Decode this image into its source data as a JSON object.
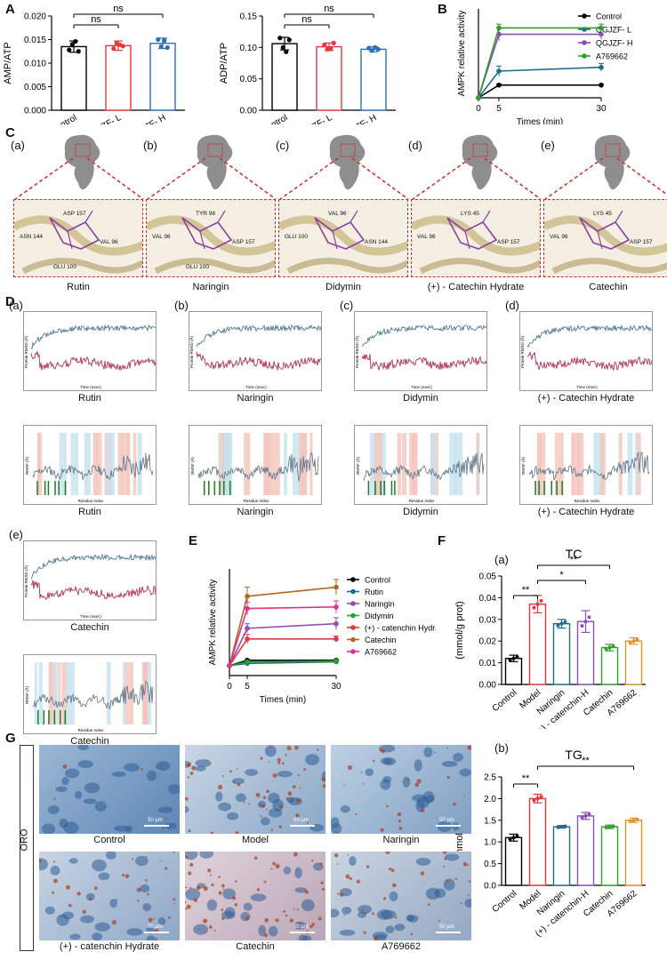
{
  "panel_labels": {
    "A": "A",
    "B": "B",
    "C": "C",
    "D": "D",
    "E": "E",
    "F": "F",
    "G": "G"
  },
  "colors": {
    "control": "#000000",
    "qgjzf_l": "#e0393e",
    "qgjzf_h": "#2f6fb5",
    "green": "#2ca02c",
    "dash": "#d12a2a"
  },
  "chart_data": [
    {
      "id": "A1",
      "type": "bar",
      "categories": [
        "Control",
        "QGJZF- L",
        "QGJZF- H"
      ],
      "values": [
        0.0135,
        0.0137,
        0.0142
      ],
      "errors": [
        0.0012,
        0.001,
        0.0011
      ],
      "points": [
        [
          0.0128,
          0.014,
          0.0146,
          0.0125
        ],
        [
          0.0131,
          0.0142,
          0.0139,
          0.0136
        ],
        [
          0.015,
          0.0135,
          0.0148,
          0.0133
        ]
      ],
      "colors": [
        "#000000",
        "#e0393e",
        "#2f6fb5"
      ],
      "ylabel": "AMP/ATP",
      "ylim": [
        0,
        0.02
      ],
      "yticks": [
        "0.000",
        "0.005",
        "0.010",
        "0.015",
        "0.020"
      ],
      "annotations": [
        {
          "from": 0,
          "to": 1,
          "text": "ns"
        },
        {
          "from": 0,
          "to": 2,
          "text": "ns"
        }
      ]
    },
    {
      "id": "A2",
      "type": "bar",
      "categories": [
        "Control",
        "QGJZF- L",
        "QGJZF- H"
      ],
      "values": [
        0.106,
        0.101,
        0.097
      ],
      "errors": [
        0.01,
        0.006,
        0.004
      ],
      "points": [
        [
          0.115,
          0.1,
          0.093,
          0.112
        ],
        [
          0.104,
          0.097,
          0.098,
          0.107
        ],
        [
          0.099,
          0.095,
          0.1,
          0.097
        ]
      ],
      "colors": [
        "#000000",
        "#e0393e",
        "#2f6fb5"
      ],
      "ylabel": "ADP/ATP",
      "ylim": [
        0,
        0.15
      ],
      "yticks": [
        "0.00",
        "0.05",
        "0.10",
        "0.15"
      ],
      "annotations": [
        {
          "from": 0,
          "to": 1,
          "text": "ns"
        },
        {
          "from": 0,
          "to": 2,
          "text": "ns"
        }
      ]
    },
    {
      "id": "B",
      "type": "line",
      "x": [
        0,
        5,
        30
      ],
      "series": [
        {
          "name": "Control",
          "values": [
            0,
            1.0,
            1.0
          ],
          "errors": [
            0,
            0.05,
            0.05
          ],
          "color": "#000000"
        },
        {
          "name": "QGJZF- L",
          "values": [
            0,
            2.1,
            2.4
          ],
          "errors": [
            0,
            0.4,
            0.3
          ],
          "color": "#1f6c8c"
        },
        {
          "name": "QGJZF- H",
          "values": [
            0,
            5.0,
            5.0
          ],
          "errors": [
            0,
            0.5,
            0.4
          ],
          "color": "#8a4fb5"
        },
        {
          "name": "A769662",
          "values": [
            0,
            5.5,
            5.5
          ],
          "errors": [
            0,
            0.3,
            0.3
          ],
          "color": "#2ca02c"
        }
      ],
      "xlabel": "Times (min)",
      "ylabel": "AMPK relative activity",
      "ylim": [
        0,
        7
      ],
      "xticks": [
        "0",
        "5",
        "30"
      ]
    },
    {
      "id": "E",
      "type": "line",
      "x": [
        0,
        5,
        30
      ],
      "series": [
        {
          "name": "Control",
          "values": [
            0.65,
            1.0,
            1.0
          ],
          "errors": [
            0,
            0.05,
            0.05
          ],
          "color": "#000000"
        },
        {
          "name": "Rutin",
          "values": [
            0.65,
            0.8,
            0.9
          ],
          "errors": [
            0,
            0.05,
            0.05
          ],
          "color": "#1f6c8c"
        },
        {
          "name": "Naringin",
          "values": [
            0.65,
            3.1,
            3.4
          ],
          "errors": [
            0,
            0.3,
            0.4
          ],
          "color": "#8a4fb5"
        },
        {
          "name": "Didymin",
          "values": [
            0.65,
            0.9,
            0.95
          ],
          "errors": [
            0,
            0.05,
            0.05
          ],
          "color": "#2ca02c"
        },
        {
          "name": "(+) - catenchin Hydrate",
          "values": [
            0.65,
            2.4,
            2.4
          ],
          "errors": [
            0,
            0.3,
            0.2
          ],
          "color": "#e0393e"
        },
        {
          "name": "Catechin",
          "values": [
            0.65,
            5.2,
            5.8
          ],
          "errors": [
            0,
            0.6,
            0.5
          ],
          "color": "#b5651d"
        },
        {
          "name": "A769662",
          "values": [
            0.65,
            4.4,
            4.5
          ],
          "errors": [
            0,
            0.4,
            0.4
          ],
          "color": "#e0338a"
        }
      ],
      "xlabel": "Times (min)",
      "ylabel": "AMPK relative activity",
      "ylim": [
        0,
        7
      ],
      "xticks": [
        "0",
        "5",
        "30"
      ]
    },
    {
      "id": "Fa",
      "type": "bar",
      "title": "TC",
      "categories": [
        "Control",
        "Model",
        "Naringin",
        "(+) - catenchin-H",
        "Catechin",
        "A769662"
      ],
      "values": [
        0.012,
        0.037,
        0.028,
        0.029,
        0.017,
        0.02
      ],
      "errors": [
        0.0015,
        0.004,
        0.002,
        0.005,
        0.0015,
        0.0015
      ],
      "colors": [
        "#000000",
        "#e0393e",
        "#1f6c8c",
        "#8a4fb5",
        "#2ca02c",
        "#d9962b"
      ],
      "ylabel": "(mmol/g prot)",
      "ylim": [
        0,
        0.05
      ],
      "yticks": [
        "0.00",
        "0.01",
        "0.02",
        "0.03",
        "0.04",
        "0.05"
      ],
      "annotations": [
        {
          "from": 0,
          "to": 1,
          "text": "**"
        },
        {
          "from": 1,
          "to": 3,
          "text": "*"
        },
        {
          "from": 1,
          "to": 4,
          "text": "**"
        }
      ]
    },
    {
      "id": "Fb",
      "type": "bar",
      "title": "TG",
      "categories": [
        "Control",
        "Model",
        "Naringin",
        "(+) - catenchin-H",
        "Catechin",
        "A769662"
      ],
      "values": [
        1.1,
        2.0,
        1.35,
        1.6,
        1.35,
        1.5
      ],
      "errors": [
        0.08,
        0.1,
        0.03,
        0.08,
        0.04,
        0.05
      ],
      "colors": [
        "#000000",
        "#e0393e",
        "#1f6c8c",
        "#8a4fb5",
        "#2ca02c",
        "#d9962b"
      ],
      "ylabel": "(mmol/g prot)",
      "ylim": [
        0,
        2.5
      ],
      "yticks": [
        "0.0",
        "0.5",
        "1.0",
        "1.5",
        "2.0",
        "2.5"
      ],
      "annotations": [
        {
          "from": 0,
          "to": 1,
          "text": "**"
        },
        {
          "from": 1,
          "to": 5,
          "text": "**"
        }
      ]
    }
  ],
  "panel_C": {
    "items": [
      {
        "sub": "(a)",
        "name": "Rutin",
        "residues": [
          "ASP 157",
          "ASN 144",
          "VAL 96",
          "GLU 100"
        ]
      },
      {
        "sub": "(b)",
        "name": "Naringin",
        "residues": [
          "TYR 98",
          "VAL 96",
          "ASP 157",
          "GLU 100"
        ]
      },
      {
        "sub": "(c)",
        "name": "Didymin",
        "residues": [
          "VAL 96",
          "GLU 100",
          "ASN 144"
        ]
      },
      {
        "sub": "(d)",
        "name": "(+) - Catechin Hydrate",
        "residues": [
          "LYS 45",
          "VAL 96",
          "ASP 157"
        ]
      },
      {
        "sub": "(e)",
        "name": "Catechin",
        "residues": [
          "LYS 45",
          "VAL 96",
          "ASP 157"
        ]
      }
    ]
  },
  "panel_D": {
    "items": [
      {
        "sub": "(a)",
        "name": "Rutin"
      },
      {
        "sub": "(b)",
        "name": "Naringin"
      },
      {
        "sub": "(c)",
        "name": "Didymin"
      },
      {
        "sub": "(d)",
        "name": "(+) - Catechin Hydrate"
      },
      {
        "sub": "(e)",
        "name": "Catechin"
      }
    ],
    "rmsd_xlabel": "Time (nsec)",
    "rmsd_ylabel": "Protein RMSD (Å)",
    "rmsf_xlabel": "Residue Index",
    "rmsf_ylabel": "RMSF (Å)"
  },
  "panel_F_subs": {
    "a": "(a)",
    "b": "(b)"
  },
  "panel_G": {
    "side_label": "ORO",
    "tiles": [
      "Control",
      "Model",
      "Naringin",
      "(+) - catenchin Hydrate",
      "Catechin",
      "A769662"
    ],
    "scale": "50 µm"
  }
}
